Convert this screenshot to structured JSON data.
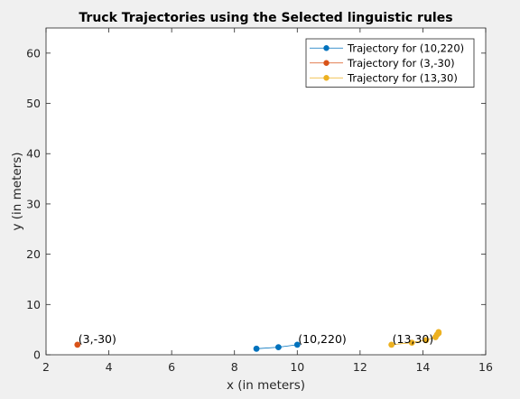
{
  "chart_data": {
    "type": "line",
    "title": "Truck Trajectories using the Selected linguistic rules",
    "xlabel": "x (in meters)",
    "ylabel": "y (in meters)",
    "xlim": [
      2,
      16
    ],
    "ylim": [
      0,
      65
    ],
    "xticks": [
      2,
      4,
      6,
      8,
      10,
      12,
      14,
      16
    ],
    "yticks": [
      0,
      10,
      20,
      30,
      40,
      50,
      60
    ],
    "grid": false,
    "legend_position": "top-right",
    "series": [
      {
        "name": "Trajectory for (10,220)",
        "color": "#0072BD",
        "x": [
          10.0,
          9.4,
          8.7
        ],
        "y": [
          2.0,
          1.5,
          1.2
        ]
      },
      {
        "name": "Trajectory for (3,-30)",
        "color": "#D95319",
        "x": [
          3.0
        ],
        "y": [
          2.0
        ]
      },
      {
        "name": "Trajectory for (13,30)",
        "color": "#EDB120",
        "x": [
          13.0,
          13.65,
          14.1,
          14.4,
          14.45,
          14.5,
          14.5
        ],
        "y": [
          2.0,
          2.4,
          2.9,
          3.5,
          4.0,
          4.3,
          4.5
        ]
      }
    ],
    "annotations": [
      {
        "text": "(10,220)",
        "x": 10.0,
        "y": 2.0
      },
      {
        "text": "(3,-30)",
        "x": 3.0,
        "y": 2.0
      },
      {
        "text": "(13,30)",
        "x": 13.0,
        "y": 2.0
      }
    ]
  }
}
